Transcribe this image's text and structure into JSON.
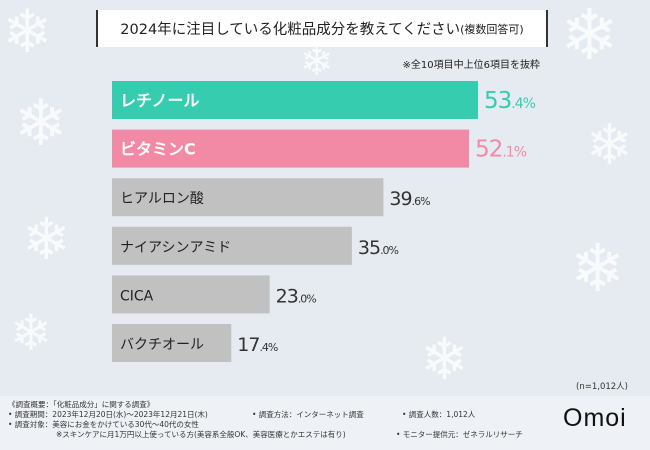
{
  "header": {
    "title": "2024年に注目している化粧品成分を教えてください",
    "title_suffix": "(複数回答可)",
    "note": "※全10項目中上位6項目を抜粋"
  },
  "chart_data": {
    "type": "bar",
    "orientation": "horizontal",
    "title": "2024年に注目している化粧品成分を教えてください(複数回答可)",
    "categories": [
      "レチノール",
      "ビタミンC",
      "ヒアルロン酸",
      "ナイアシンアミド",
      "CICA",
      "バクチオール"
    ],
    "values": [
      53.4,
      52.1,
      39.6,
      35.0,
      23.0,
      17.4
    ],
    "value_labels": [
      {
        "int": "53",
        "dec": ".4%"
      },
      {
        "int": "52",
        "dec": ".1%"
      },
      {
        "int": "39",
        "dec": ".6%"
      },
      {
        "int": "35",
        "dec": ".0%"
      },
      {
        "int": "23",
        "dec": ".0%"
      },
      {
        "int": "17",
        "dec": ".4%"
      }
    ],
    "bar_colors": [
      "#35ccb0",
      "#f28aa6",
      "#c1c1c1",
      "#c1c1c1",
      "#c1c1c1",
      "#c1c1c1"
    ],
    "label_colors": [
      "#35ccb0",
      "#f28aa6",
      "#333333",
      "#333333",
      "#333333",
      "#333333"
    ],
    "xlim": [
      0,
      53.4
    ],
    "unit": "%",
    "sample": "(n=1,012人)"
  },
  "footer": {
    "overview": "《調査概要：「化粧品成分」に関する調査》",
    "period": "• 調査期間：2023年12月20日(水)〜2023年12月21日(木)",
    "method": "• 調査方法：インターネット調査",
    "count": "• 調査人数：1,012人",
    "target": "• 調査対象：美容にお金をかけている30代〜40代の女性",
    "target_note": "※スキンケアに月1万円以上使っている方(美容系全般OK、美容医療とかエステは有り)",
    "provider": "• モニター提供元：ゼネラルリサーチ",
    "brand": "Omoi"
  }
}
